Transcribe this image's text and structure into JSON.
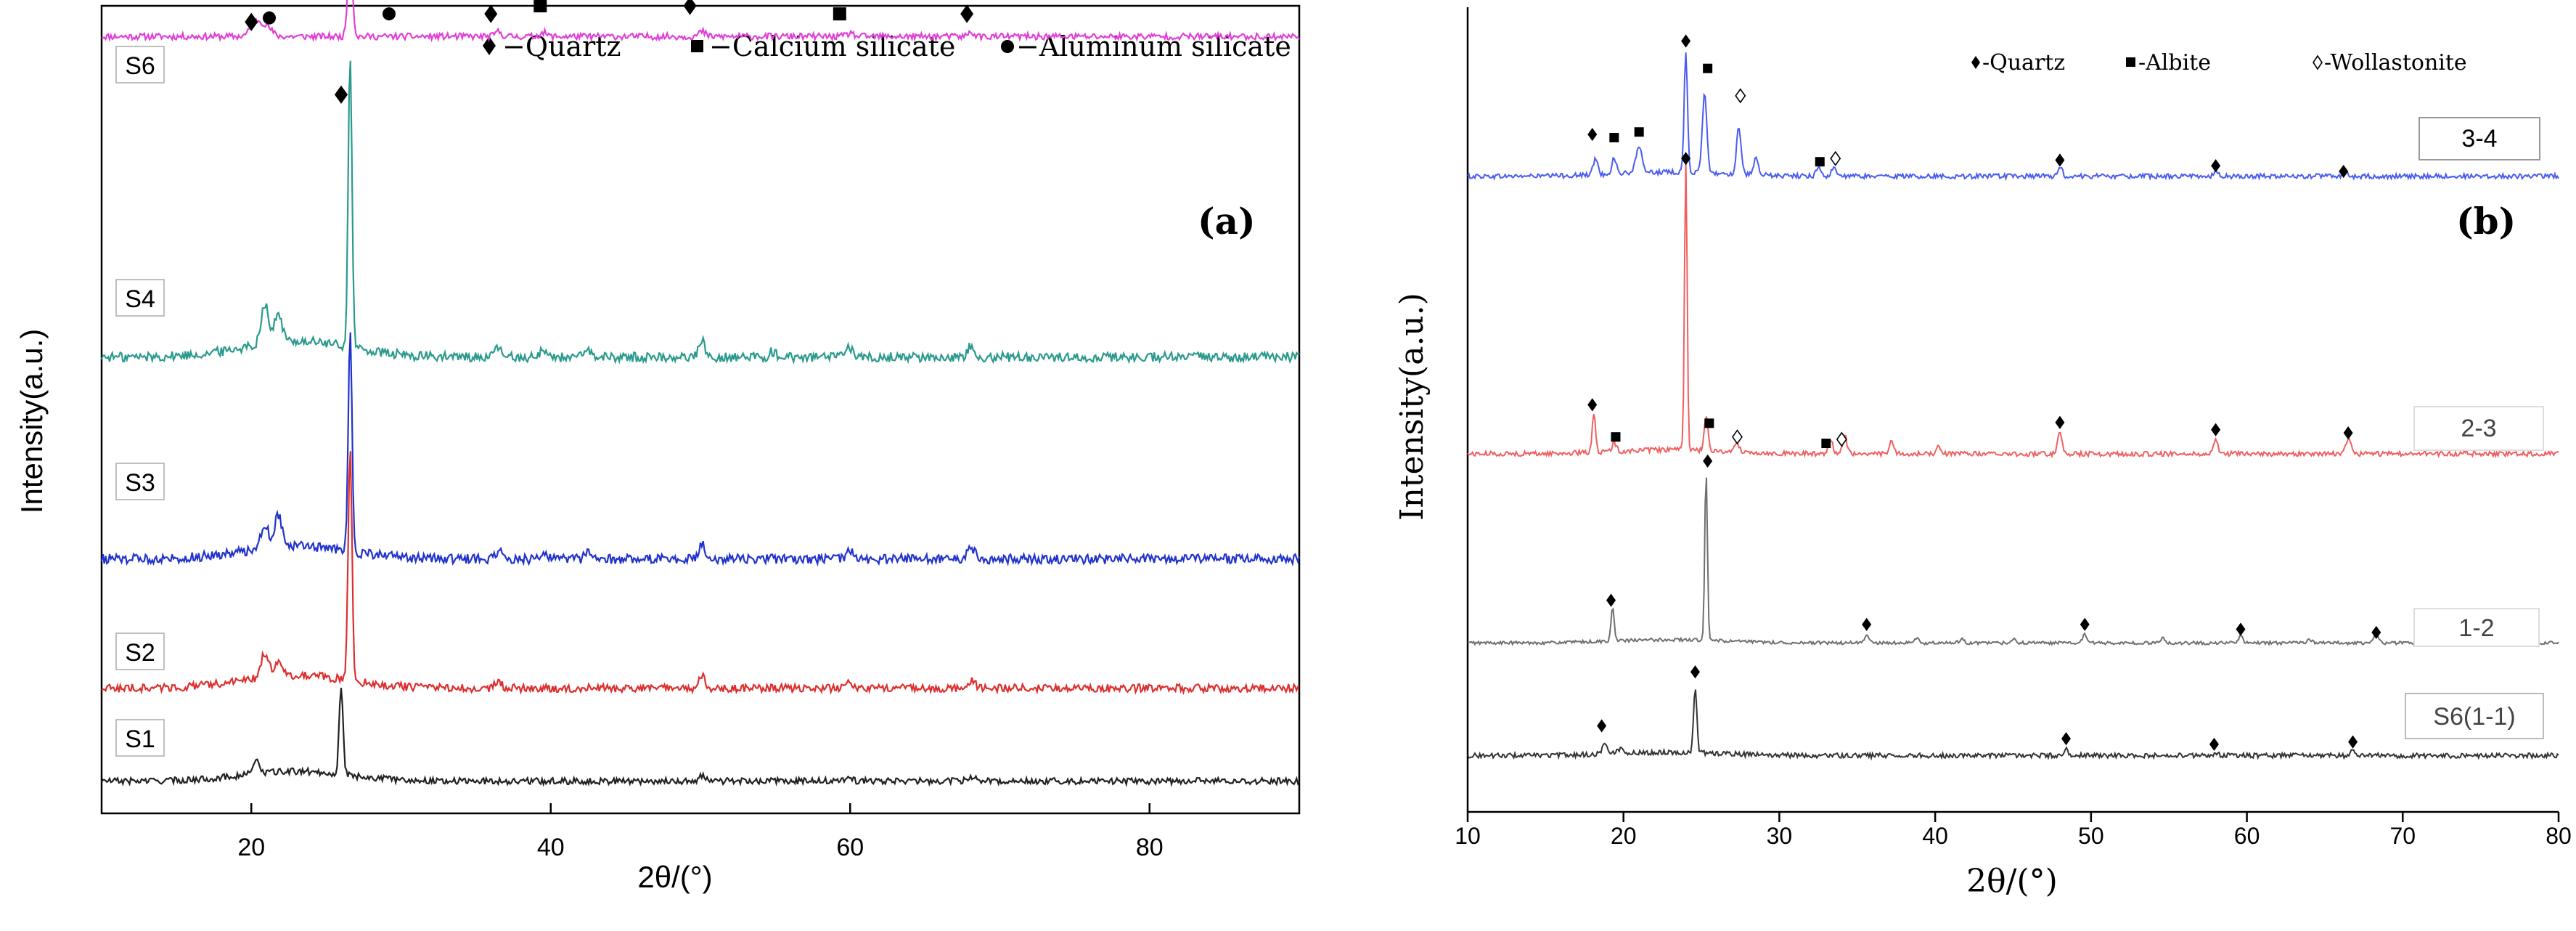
{
  "chart_data": [
    {
      "panel": "(a)",
      "type": "line",
      "xlabel": "2θ/(°)",
      "ylabel": "Intensity(a.u.)",
      "xlim": [
        10,
        90
      ],
      "xticks": [
        20,
        40,
        60,
        80
      ],
      "y_ticks_shown": false,
      "legend": {
        "placement": "top",
        "entries": [
          {
            "symbol": "diamond",
            "label": "−Quartz"
          },
          {
            "symbol": "square",
            "label": "−Calcium silicate"
          },
          {
            "symbol": "circle",
            "label": "−Aluminum silicate"
          }
        ]
      },
      "series": [
        {
          "name": "S6",
          "color": "#e040d8",
          "baseline": 0.962,
          "rise": 0,
          "noise": 0.004,
          "peaks": [
            [
              20.3,
              0.018,
              0.5
            ],
            [
              21.0,
              0.012,
              0.5
            ],
            [
              26.6,
              0.11,
              0.22
            ],
            [
              36.5,
              0.006,
              0.3
            ],
            [
              39.5,
              0.005,
              0.3
            ],
            [
              50.1,
              0.006,
              0.3
            ],
            [
              60.0,
              0.004,
              0.3
            ],
            [
              68.1,
              0.005,
              0.3
            ]
          ],
          "markers": [
            {
              "symbol": "diamond",
              "x": 20.0,
              "y": 0.98
            },
            {
              "symbol": "circle",
              "x": 21.2,
              "y": 0.985
            },
            {
              "symbol": "diamond",
              "x": 26.0,
              "y": 0.89
            },
            {
              "symbol": "circle",
              "x": 29.2,
              "y": 0.99
            },
            {
              "symbol": "diamond",
              "x": 36.0,
              "y": 0.99
            },
            {
              "symbol": "square",
              "x": 39.3,
              "y": 1.0
            },
            {
              "symbol": "diamond",
              "x": 49.3,
              "y": 1.0
            },
            {
              "symbol": "square",
              "x": 59.3,
              "y": 0.99
            },
            {
              "symbol": "diamond",
              "x": 67.8,
              "y": 0.99
            }
          ]
        },
        {
          "name": "S4",
          "color": "#2a9a8c",
          "baseline": 0.565,
          "rise": 0.02,
          "noise": 0.006,
          "peaks": [
            [
              20.9,
              0.05,
              0.35
            ],
            [
              21.8,
              0.035,
              0.35
            ],
            [
              26.6,
              0.36,
              0.18
            ],
            [
              36.5,
              0.012,
              0.3
            ],
            [
              39.5,
              0.01,
              0.3
            ],
            [
              42.5,
              0.008,
              0.3
            ],
            [
              50.1,
              0.02,
              0.3
            ],
            [
              54.8,
              0.007,
              0.3
            ],
            [
              60.0,
              0.012,
              0.3
            ],
            [
              68.1,
              0.015,
              0.35
            ]
          ],
          "markers": []
        },
        {
          "name": "S3",
          "color": "#2233cc",
          "baseline": 0.315,
          "rise": 0.016,
          "noise": 0.006,
          "peaks": [
            [
              20.9,
              0.03,
              0.35
            ],
            [
              21.8,
              0.04,
              0.35
            ],
            [
              26.6,
              0.27,
              0.18
            ],
            [
              36.5,
              0.01,
              0.3
            ],
            [
              39.5,
              0.008,
              0.3
            ],
            [
              42.5,
              0.007,
              0.3
            ],
            [
              50.1,
              0.018,
              0.3
            ],
            [
              60.0,
              0.01,
              0.3
            ],
            [
              68.1,
              0.012,
              0.35
            ]
          ],
          "markers": []
        },
        {
          "name": "S2",
          "color": "#dd2f2f",
          "baseline": 0.155,
          "rise": 0.016,
          "noise": 0.005,
          "peaks": [
            [
              20.9,
              0.03,
              0.35
            ],
            [
              21.8,
              0.02,
              0.35
            ],
            [
              26.6,
              0.29,
              0.18
            ],
            [
              36.5,
              0.008,
              0.3
            ],
            [
              50.1,
              0.015,
              0.3
            ],
            [
              60.0,
              0.008,
              0.3
            ],
            [
              68.1,
              0.01,
              0.35
            ]
          ],
          "markers": []
        },
        {
          "name": "S1",
          "color": "#222222",
          "baseline": 0.04,
          "rise": 0.012,
          "noise": 0.004,
          "peaks": [
            [
              20.3,
              0.015,
              0.35
            ],
            [
              26.0,
              0.11,
              0.18
            ],
            [
              50.1,
              0.006,
              0.3
            ],
            [
              60.0,
              0.004,
              0.3
            ],
            [
              68.1,
              0.006,
              0.35
            ]
          ],
          "markers": []
        }
      ]
    },
    {
      "panel": "(b)",
      "type": "line",
      "xlabel": "2θ/(°)",
      "ylabel": "Intensity(a.u.)",
      "xlim": [
        10,
        80
      ],
      "xticks": [
        10,
        20,
        30,
        40,
        50,
        60,
        70,
        80
      ],
      "y_ticks_shown": false,
      "legend": {
        "placement": "top",
        "entries": [
          {
            "symbol": "diamond",
            "label": "-Quartz"
          },
          {
            "symbol": "square",
            "label": "-Albite"
          },
          {
            "symbol": "open-diamond",
            "label": "-Wollastonite"
          }
        ]
      },
      "series": [
        {
          "name": "3-4",
          "color": "#4a5cf0",
          "baseline": 0.79,
          "rise": 0.005,
          "noise": 0.003,
          "peaks": [
            [
              18.2,
              0.02,
              0.2
            ],
            [
              19.4,
              0.02,
              0.2
            ],
            [
              21.0,
              0.03,
              0.3
            ],
            [
              24.0,
              0.15,
              0.15
            ],
            [
              25.2,
              0.1,
              0.2
            ],
            [
              27.4,
              0.06,
              0.2
            ],
            [
              28.5,
              0.02,
              0.2
            ],
            [
              32.5,
              0.012,
              0.2
            ],
            [
              33.5,
              0.01,
              0.2
            ],
            [
              48.0,
              0.012,
              0.2
            ],
            [
              58.0,
              0.008,
              0.2
            ],
            [
              66.3,
              0.006,
              0.2
            ]
          ],
          "markers": [
            {
              "symbol": "diamond",
              "x": 18.0,
              "y": 0.842
            },
            {
              "symbol": "square",
              "x": 19.4,
              "y": 0.838
            },
            {
              "symbol": "square",
              "x": 21.0,
              "y": 0.845
            },
            {
              "symbol": "diamond",
              "x": 24.0,
              "y": 0.958
            },
            {
              "symbol": "square",
              "x": 25.4,
              "y": 0.924
            },
            {
              "symbol": "open-diamond",
              "x": 27.5,
              "y": 0.89
            },
            {
              "symbol": "square",
              "x": 32.6,
              "y": 0.808
            },
            {
              "symbol": "open-diamond",
              "x": 33.6,
              "y": 0.812
            },
            {
              "symbol": "diamond",
              "x": 48.0,
              "y": 0.81
            },
            {
              "symbol": "diamond",
              "x": 58.0,
              "y": 0.803
            },
            {
              "symbol": "diamond",
              "x": 66.2,
              "y": 0.796
            }
          ]
        },
        {
          "name": "2-3",
          "color": "#f06060",
          "baseline": 0.445,
          "rise": 0.005,
          "noise": 0.003,
          "peaks": [
            [
              18.1,
              0.05,
              0.15
            ],
            [
              19.4,
              0.01,
              0.2
            ],
            [
              24.0,
              0.36,
              0.12
            ],
            [
              25.3,
              0.04,
              0.18
            ],
            [
              27.3,
              0.012,
              0.2
            ],
            [
              33.3,
              0.018,
              0.2
            ],
            [
              34.2,
              0.022,
              0.2
            ],
            [
              37.2,
              0.015,
              0.2
            ],
            [
              40.2,
              0.012,
              0.2
            ],
            [
              48.0,
              0.03,
              0.18
            ],
            [
              58.0,
              0.02,
              0.18
            ],
            [
              66.5,
              0.018,
              0.25
            ],
            [
              74.0,
              0.004,
              0.2
            ]
          ],
          "markers": [
            {
              "symbol": "diamond",
              "x": 18.0,
              "y": 0.506
            },
            {
              "symbol": "square",
              "x": 19.5,
              "y": 0.466
            },
            {
              "symbol": "diamond",
              "x": 24.0,
              "y": 0.812
            },
            {
              "symbol": "square",
              "x": 25.5,
              "y": 0.483
            },
            {
              "symbol": "open-diamond",
              "x": 27.3,
              "y": 0.466
            },
            {
              "symbol": "square",
              "x": 33.0,
              "y": 0.458
            },
            {
              "symbol": "open-diamond",
              "x": 34.0,
              "y": 0.463
            },
            {
              "symbol": "diamond",
              "x": 48.0,
              "y": 0.484
            },
            {
              "symbol": "diamond",
              "x": 58.0,
              "y": 0.475
            },
            {
              "symbol": "diamond",
              "x": 66.5,
              "y": 0.471
            }
          ]
        },
        {
          "name": "1-2",
          "color": "#6f6f6f",
          "baseline": 0.21,
          "rise": 0.004,
          "noise": 0.002,
          "peaks": [
            [
              19.3,
              0.04,
              0.15
            ],
            [
              25.3,
              0.21,
              0.12
            ],
            [
              35.6,
              0.01,
              0.2
            ],
            [
              38.8,
              0.006,
              0.2
            ],
            [
              41.7,
              0.005,
              0.2
            ],
            [
              45.0,
              0.005,
              0.2
            ],
            [
              49.6,
              0.012,
              0.18
            ],
            [
              54.6,
              0.006,
              0.2
            ],
            [
              59.6,
              0.01,
              0.18
            ],
            [
              64.0,
              0.005,
              0.2
            ],
            [
              68.3,
              0.01,
              0.25
            ]
          ],
          "markers": [
            {
              "symbol": "diamond",
              "x": 19.2,
              "y": 0.263
            },
            {
              "symbol": "diamond",
              "x": 25.4,
              "y": 0.436
            },
            {
              "symbol": "diamond",
              "x": 35.6,
              "y": 0.233
            },
            {
              "symbol": "diamond",
              "x": 49.6,
              "y": 0.233
            },
            {
              "symbol": "diamond",
              "x": 59.6,
              "y": 0.227
            },
            {
              "symbol": "diamond",
              "x": 68.3,
              "y": 0.223
            }
          ]
        },
        {
          "name": "S6(1-1)",
          "color": "#333333",
          "baseline": 0.07,
          "rise": 0.004,
          "noise": 0.003,
          "peaks": [
            [
              18.8,
              0.012,
              0.25
            ],
            [
              19.8,
              0.006,
              0.3
            ],
            [
              24.6,
              0.08,
              0.15
            ],
            [
              48.4,
              0.008,
              0.2
            ],
            [
              58.0,
              0.004,
              0.2
            ],
            [
              66.8,
              0.006,
              0.2
            ]
          ],
          "markers": [
            {
              "symbol": "diamond",
              "x": 18.6,
              "y": 0.107
            },
            {
              "symbol": "diamond",
              "x": 24.6,
              "y": 0.174
            },
            {
              "symbol": "diamond",
              "x": 48.4,
              "y": 0.091
            },
            {
              "symbol": "diamond",
              "x": 57.9,
              "y": 0.084
            },
            {
              "symbol": "diamond",
              "x": 66.8,
              "y": 0.087
            }
          ]
        }
      ]
    }
  ]
}
